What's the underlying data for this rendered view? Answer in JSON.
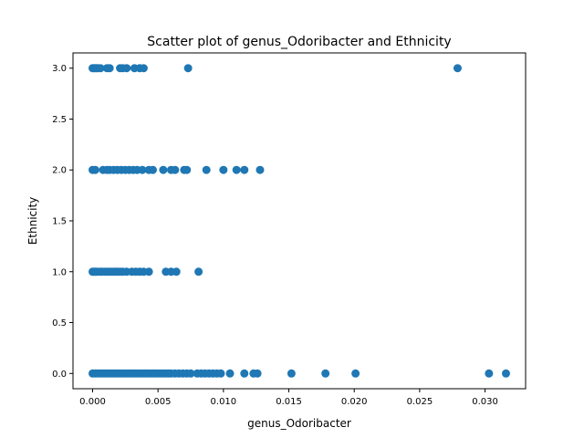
{
  "chart_data": {
    "type": "scatter",
    "title": "Scatter plot of genus_Odoribacter and Ethnicity",
    "xlabel": "genus_Odoribacter",
    "ylabel": "Ethnicity",
    "xlim": [
      -0.0015,
      0.0331
    ],
    "ylim": [
      -0.15,
      3.15
    ],
    "x_ticks": [
      0.0,
      0.005,
      0.01,
      0.015,
      0.02,
      0.025,
      0.03
    ],
    "x_tick_labels": [
      "0.000",
      "0.005",
      "0.010",
      "0.015",
      "0.020",
      "0.025",
      "0.030"
    ],
    "y_ticks": [
      0.0,
      0.5,
      1.0,
      1.5,
      2.0,
      2.5,
      3.0
    ],
    "y_tick_labels": [
      "0.0",
      "0.5",
      "1.0",
      "1.5",
      "2.0",
      "2.5",
      "3.0"
    ],
    "grid": false,
    "marker_color": "#1f77b4",
    "series": [
      {
        "points": [
          [
            0.0,
            3
          ],
          [
            0.0001,
            3
          ],
          [
            0.0002,
            3
          ],
          [
            0.0003,
            3
          ],
          [
            0.0004,
            3
          ],
          [
            0.0006,
            3
          ],
          [
            0.0011,
            3
          ],
          [
            0.0013,
            3
          ],
          [
            0.0021,
            3
          ],
          [
            0.0023,
            3
          ],
          [
            0.0026,
            3
          ],
          [
            0.0032,
            3
          ],
          [
            0.0036,
            3
          ],
          [
            0.0039,
            3
          ],
          [
            0.0073,
            3
          ],
          [
            0.0279,
            3
          ],
          [
            0.0,
            2
          ],
          [
            0.0002,
            2
          ],
          [
            0.0008,
            2
          ],
          [
            0.0011,
            2
          ],
          [
            0.0013,
            2
          ],
          [
            0.0016,
            2
          ],
          [
            0.0019,
            2
          ],
          [
            0.0022,
            2
          ],
          [
            0.0025,
            2
          ],
          [
            0.0028,
            2
          ],
          [
            0.0031,
            2
          ],
          [
            0.0034,
            2
          ],
          [
            0.0038,
            2
          ],
          [
            0.0043,
            2
          ],
          [
            0.0046,
            2
          ],
          [
            0.0054,
            2
          ],
          [
            0.006,
            2
          ],
          [
            0.0063,
            2
          ],
          [
            0.007,
            2
          ],
          [
            0.0072,
            2
          ],
          [
            0.0087,
            2
          ],
          [
            0.01,
            2
          ],
          [
            0.011,
            2
          ],
          [
            0.0116,
            2
          ],
          [
            0.0128,
            2
          ],
          [
            0.0,
            1
          ],
          [
            0.0001,
            1
          ],
          [
            0.0002,
            1
          ],
          [
            0.0003,
            1
          ],
          [
            0.0005,
            1
          ],
          [
            0.0007,
            1
          ],
          [
            0.0009,
            1
          ],
          [
            0.0011,
            1
          ],
          [
            0.0013,
            1
          ],
          [
            0.0015,
            1
          ],
          [
            0.0017,
            1
          ],
          [
            0.0019,
            1
          ],
          [
            0.0021,
            1
          ],
          [
            0.0023,
            1
          ],
          [
            0.0026,
            1
          ],
          [
            0.003,
            1
          ],
          [
            0.0033,
            1
          ],
          [
            0.0036,
            1
          ],
          [
            0.0039,
            1
          ],
          [
            0.0043,
            1
          ],
          [
            0.0056,
            1
          ],
          [
            0.006,
            1
          ],
          [
            0.0064,
            1
          ],
          [
            0.0081,
            1
          ],
          [
            0.0,
            0
          ],
          [
            0.0002,
            0
          ],
          [
            0.0004,
            0
          ],
          [
            0.0006,
            0
          ],
          [
            0.0008,
            0
          ],
          [
            0.001,
            0
          ],
          [
            0.0012,
            0
          ],
          [
            0.0014,
            0
          ],
          [
            0.0016,
            0
          ],
          [
            0.0018,
            0
          ],
          [
            0.002,
            0
          ],
          [
            0.0022,
            0
          ],
          [
            0.0024,
            0
          ],
          [
            0.0026,
            0
          ],
          [
            0.0028,
            0
          ],
          [
            0.003,
            0
          ],
          [
            0.0032,
            0
          ],
          [
            0.0034,
            0
          ],
          [
            0.0036,
            0
          ],
          [
            0.0038,
            0
          ],
          [
            0.004,
            0
          ],
          [
            0.0042,
            0
          ],
          [
            0.0044,
            0
          ],
          [
            0.0046,
            0
          ],
          [
            0.0048,
            0
          ],
          [
            0.005,
            0
          ],
          [
            0.0052,
            0
          ],
          [
            0.0054,
            0
          ],
          [
            0.0056,
            0
          ],
          [
            0.0058,
            0
          ],
          [
            0.006,
            0
          ],
          [
            0.0063,
            0
          ],
          [
            0.0066,
            0
          ],
          [
            0.0069,
            0
          ],
          [
            0.0072,
            0
          ],
          [
            0.0075,
            0
          ],
          [
            0.008,
            0
          ],
          [
            0.0083,
            0
          ],
          [
            0.0086,
            0
          ],
          [
            0.0089,
            0
          ],
          [
            0.0092,
            0
          ],
          [
            0.0095,
            0
          ],
          [
            0.0098,
            0
          ],
          [
            0.0105,
            0
          ],
          [
            0.0116,
            0
          ],
          [
            0.0123,
            0
          ],
          [
            0.0126,
            0
          ],
          [
            0.0152,
            0
          ],
          [
            0.0178,
            0
          ],
          [
            0.0201,
            0
          ],
          [
            0.0303,
            0
          ],
          [
            0.0316,
            0
          ]
        ]
      }
    ]
  }
}
